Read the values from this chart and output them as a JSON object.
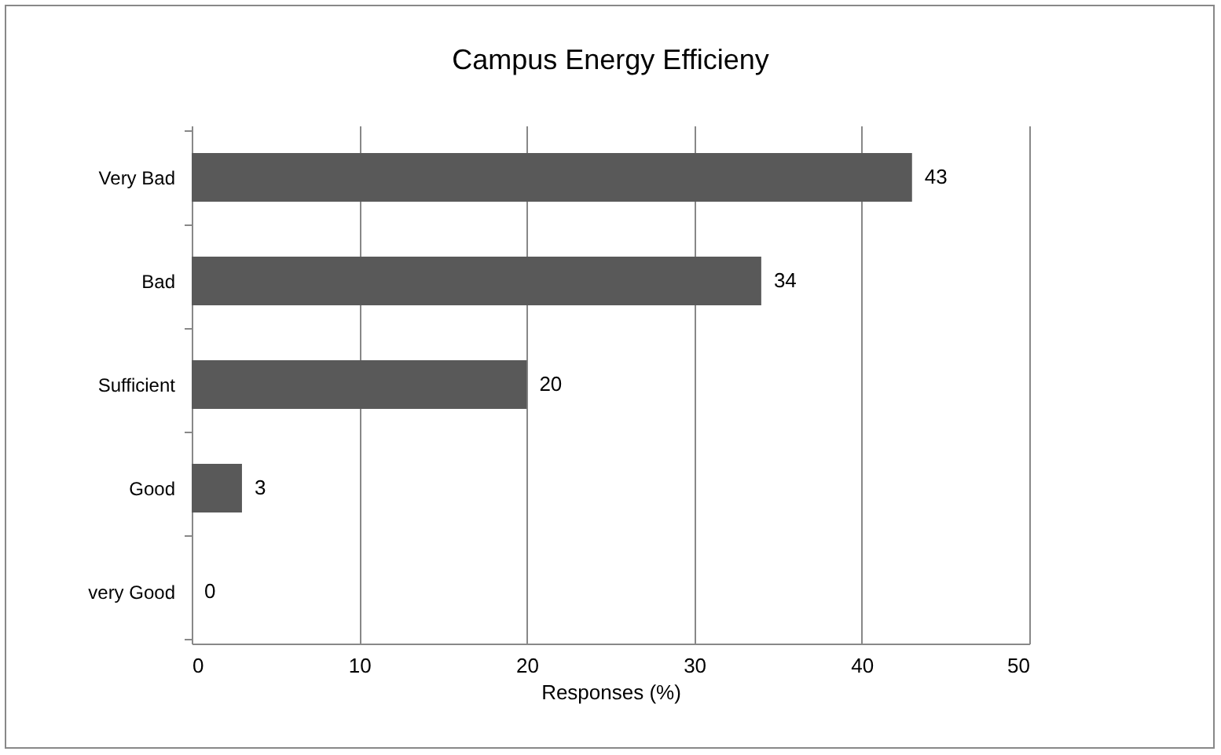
{
  "chart_data": {
    "type": "bar",
    "orientation": "horizontal",
    "title": "Campus Energy Efficieny",
    "xlabel": "Responses (%)",
    "categories": [
      "Very Bad",
      "Bad",
      "Sufficient",
      "Good",
      "very Good"
    ],
    "values": [
      43,
      34,
      20,
      3,
      0
    ],
    "color": "#595959",
    "xlim": [
      0,
      50
    ],
    "xticks": [
      0,
      10,
      20,
      30,
      40,
      50
    ],
    "grid": "x",
    "data_labels": true
  }
}
